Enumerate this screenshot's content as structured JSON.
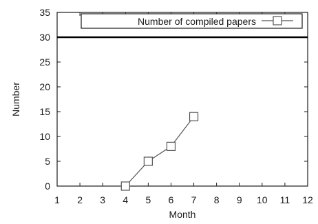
{
  "chart_data": {
    "type": "line",
    "xlabel": "Month",
    "ylabel": "Number",
    "xlim": [
      1,
      12
    ],
    "ylim": [
      0,
      35
    ],
    "x_ticks": [
      "1",
      "2",
      "3",
      "4",
      "5",
      "6",
      "7",
      "8",
      "9",
      "10",
      "11",
      "12"
    ],
    "y_ticks": [
      "0",
      "5",
      "10",
      "15",
      "20",
      "25",
      "30",
      "35"
    ],
    "reference_line": {
      "y": 30
    },
    "legend_position": "top-right",
    "series": [
      {
        "name": "Number of compiled papers",
        "marker": "square",
        "color": "#555555",
        "x": [
          4,
          5,
          6,
          7
        ],
        "y": [
          0,
          5,
          8,
          14
        ]
      }
    ]
  }
}
